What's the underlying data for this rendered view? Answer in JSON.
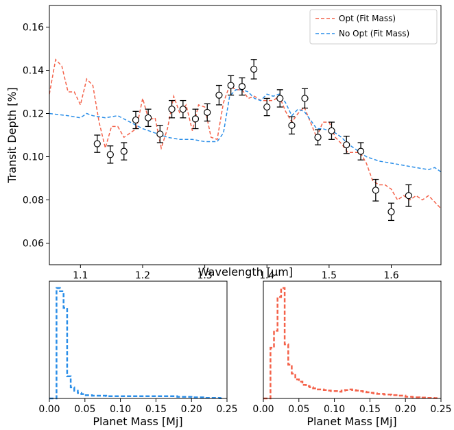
{
  "colors": {
    "opt": "#f4624a",
    "noopt": "#2a8ee8",
    "points": "#000000"
  },
  "chart_data": [
    {
      "type": "line",
      "xlabel": "Wavelength [μm]",
      "ylabel": "Transit Depth [%]",
      "xlim": [
        1.05,
        1.68
      ],
      "ylim": [
        0.05,
        0.17
      ],
      "xticks": [
        "1.1",
        "1.2",
        "1.3",
        "1.4",
        "1.5",
        "1.6"
      ],
      "yticks": [
        "0.06",
        "0.08",
        "0.10",
        "0.12",
        "0.14",
        "0.16"
      ],
      "legend_position": "top-right",
      "series": [
        {
          "name": "Opt (Fit Mass)",
          "style": "dashed",
          "x": [
            1.05,
            1.06,
            1.07,
            1.08,
            1.09,
            1.1,
            1.11,
            1.12,
            1.13,
            1.14,
            1.15,
            1.16,
            1.17,
            1.18,
            1.19,
            1.2,
            1.21,
            1.22,
            1.23,
            1.24,
            1.25,
            1.26,
            1.27,
            1.28,
            1.29,
            1.3,
            1.31,
            1.32,
            1.33,
            1.34,
            1.35,
            1.36,
            1.37,
            1.38,
            1.39,
            1.4,
            1.41,
            1.42,
            1.43,
            1.44,
            1.45,
            1.46,
            1.47,
            1.48,
            1.49,
            1.5,
            1.51,
            1.52,
            1.53,
            1.54,
            1.55,
            1.56,
            1.57,
            1.58,
            1.59,
            1.6,
            1.61,
            1.62,
            1.63,
            1.64,
            1.65,
            1.66,
            1.67,
            1.68
          ],
          "y": [
            0.129,
            0.145,
            0.142,
            0.13,
            0.13,
            0.124,
            0.136,
            0.133,
            0.116,
            0.104,
            0.114,
            0.114,
            0.109,
            0.111,
            0.113,
            0.127,
            0.117,
            0.118,
            0.104,
            0.113,
            0.128,
            0.12,
            0.124,
            0.112,
            0.124,
            0.123,
            0.109,
            0.108,
            0.125,
            0.133,
            0.131,
            0.131,
            0.127,
            0.128,
            0.126,
            0.126,
            0.126,
            0.128,
            0.121,
            0.116,
            0.12,
            0.123,
            0.116,
            0.109,
            0.116,
            0.116,
            0.109,
            0.106,
            0.102,
            0.102,
            0.102,
            0.097,
            0.089,
            0.087,
            0.087,
            0.085,
            0.08,
            0.082,
            0.08,
            0.082,
            0.08,
            0.082,
            0.079,
            0.076
          ]
        },
        {
          "name": "No Opt (Fit Mass)",
          "style": "dashed",
          "x": [
            1.05,
            1.08,
            1.1,
            1.11,
            1.12,
            1.14,
            1.16,
            1.18,
            1.2,
            1.22,
            1.24,
            1.26,
            1.28,
            1.3,
            1.32,
            1.33,
            1.34,
            1.35,
            1.36,
            1.37,
            1.38,
            1.39,
            1.4,
            1.41,
            1.42,
            1.43,
            1.44,
            1.45,
            1.46,
            1.47,
            1.48,
            1.49,
            1.5,
            1.51,
            1.52,
            1.53,
            1.54,
            1.55,
            1.56,
            1.58,
            1.6,
            1.62,
            1.64,
            1.66,
            1.67,
            1.68
          ],
          "y": [
            0.12,
            0.119,
            0.118,
            0.12,
            0.119,
            0.118,
            0.119,
            0.116,
            0.113,
            0.111,
            0.109,
            0.108,
            0.108,
            0.107,
            0.107,
            0.111,
            0.128,
            0.131,
            0.131,
            0.13,
            0.127,
            0.126,
            0.129,
            0.128,
            0.129,
            0.125,
            0.119,
            0.122,
            0.121,
            0.117,
            0.113,
            0.113,
            0.112,
            0.111,
            0.109,
            0.106,
            0.104,
            0.102,
            0.1,
            0.098,
            0.097,
            0.096,
            0.095,
            0.094,
            0.095,
            0.093
          ]
        }
      ],
      "points": {
        "x": [
          1.127,
          1.148,
          1.17,
          1.189,
          1.209,
          1.228,
          1.247,
          1.265,
          1.285,
          1.304,
          1.323,
          1.342,
          1.36,
          1.379,
          1.4,
          1.421,
          1.44,
          1.461,
          1.482,
          1.504,
          1.528,
          1.551,
          1.575,
          1.6,
          1.628
        ],
        "y": [
          0.106,
          0.101,
          0.1025,
          0.117,
          0.118,
          0.1105,
          0.122,
          0.122,
          0.1175,
          0.1205,
          0.1285,
          0.133,
          0.1325,
          0.1405,
          0.123,
          0.127,
          0.1145,
          0.127,
          0.109,
          0.112,
          0.1055,
          0.1025,
          0.0845,
          0.0745,
          0.082
        ],
        "err": [
          0.004,
          0.004,
          0.004,
          0.004,
          0.004,
          0.004,
          0.004,
          0.004,
          0.0045,
          0.004,
          0.0045,
          0.0045,
          0.004,
          0.0045,
          0.004,
          0.004,
          0.004,
          0.0045,
          0.0035,
          0.004,
          0.004,
          0.004,
          0.005,
          0.004,
          0.005
        ]
      }
    },
    {
      "type": "histogram",
      "xlabel": "Planet Mass [Mj]",
      "xlim": [
        0.0,
        0.25
      ],
      "xticks": [
        "0.00",
        "0.05",
        "0.10",
        "0.15",
        "0.20",
        "0.25"
      ],
      "bin_width": 0.005,
      "bins_start": [
        0.0,
        0.005,
        0.01,
        0.015,
        0.02,
        0.025,
        0.03,
        0.035,
        0.04,
        0.045,
        0.05,
        0.06,
        0.08,
        0.1,
        0.12,
        0.14,
        0.16,
        0.18,
        0.2,
        0.22,
        0.24
      ],
      "counts": [
        0,
        0,
        1.0,
        0.97,
        0.82,
        0.2,
        0.1,
        0.07,
        0.05,
        0.04,
        0.03,
        0.025,
        0.02,
        0.02,
        0.02,
        0.02,
        0.02,
        0.015,
        0.01,
        0.005,
        0.002
      ],
      "series_color": "noopt"
    },
    {
      "type": "histogram",
      "xlabel": "Planet Mass [Mj]",
      "xlim": [
        0.0,
        0.25
      ],
      "xticks": [
        "0.00",
        "0.05",
        "0.10",
        "0.15",
        "0.20",
        "0.25"
      ],
      "bin_width": 0.005,
      "bins_start": [
        0.0,
        0.005,
        0.01,
        0.015,
        0.02,
        0.025,
        0.03,
        0.035,
        0.04,
        0.045,
        0.05,
        0.055,
        0.06,
        0.065,
        0.07,
        0.075,
        0.08,
        0.085,
        0.09,
        0.095,
        0.1,
        0.105,
        0.11,
        0.115,
        0.12,
        0.125,
        0.13,
        0.135,
        0.14,
        0.145,
        0.15,
        0.155,
        0.16,
        0.17,
        0.18,
        0.19,
        0.2,
        0.21,
        0.22,
        0.23,
        0.24
      ],
      "counts": [
        0,
        0,
        0.45,
        0.6,
        0.9,
        0.98,
        0.48,
        0.3,
        0.22,
        0.17,
        0.15,
        0.12,
        0.11,
        0.1,
        0.09,
        0.08,
        0.08,
        0.075,
        0.07,
        0.065,
        0.065,
        0.06,
        0.07,
        0.075,
        0.08,
        0.075,
        0.07,
        0.065,
        0.06,
        0.055,
        0.05,
        0.045,
        0.04,
        0.035,
        0.03,
        0.025,
        0.015,
        0.01,
        0.008,
        0.005,
        0.003
      ],
      "series_color": "opt"
    }
  ]
}
